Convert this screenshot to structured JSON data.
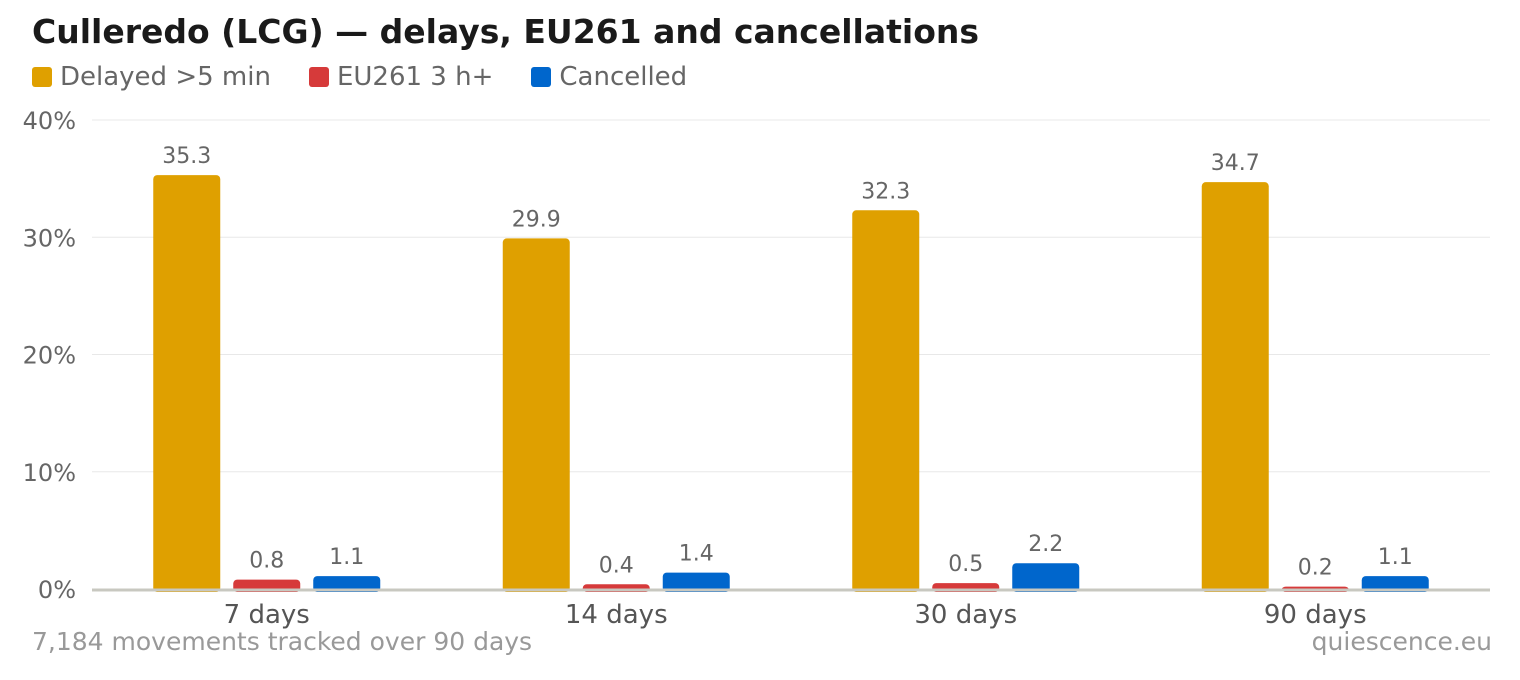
{
  "colors": {
    "delayed": "#dfa000",
    "eu261": "#d63a3a",
    "cancelled": "#0066cc",
    "grid": "#e8e8e8",
    "axis": "#c8c8c0"
  },
  "footer": {
    "left": "7,184 movements tracked over 90 days",
    "right": "quiescence.eu"
  },
  "chart_data": {
    "type": "bar",
    "title": "Culleredo (LCG) — delays, EU261 and cancellations",
    "categories": [
      "7 days",
      "14 days",
      "30 days",
      "90 days"
    ],
    "series": [
      {
        "name": "Delayed >5 min",
        "color": "#dfa000",
        "values": [
          35.3,
          29.9,
          32.3,
          34.7
        ]
      },
      {
        "name": "EU261 3 h+",
        "color": "#d63a3a",
        "values": [
          0.8,
          0.4,
          0.5,
          0.2
        ]
      },
      {
        "name": "Cancelled",
        "color": "#0066cc",
        "values": [
          1.1,
          1.4,
          2.2,
          1.1
        ]
      }
    ],
    "ylim": [
      0,
      40
    ],
    "yticks": [
      0,
      10,
      20,
      30,
      40
    ],
    "ytick_labels": [
      "0%",
      "10%",
      "20%",
      "30%",
      "40%"
    ],
    "grid": true,
    "legend_position": "top-left",
    "data_labels": true
  }
}
